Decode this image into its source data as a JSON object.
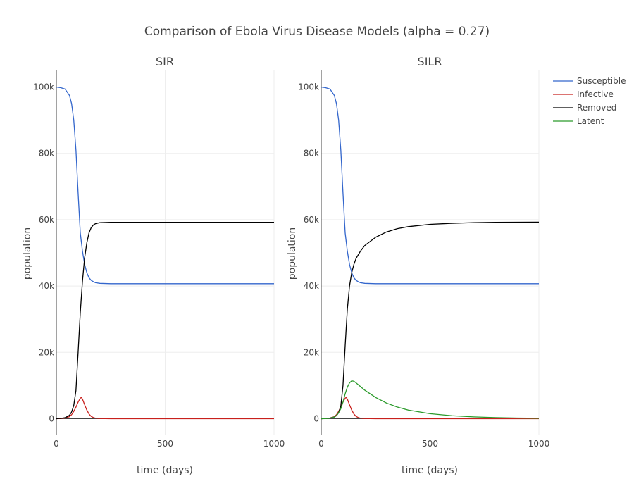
{
  "chart_data": {
    "title": "Comparison of Ebola Virus Disease Models (alpha = 0.27)",
    "type": "line",
    "legend": {
      "placement": "top-right",
      "entries": [
        {
          "name": "Susceptible",
          "color": "#3366cc"
        },
        {
          "name": "Infective",
          "color": "#c8201d"
        },
        {
          "name": "Removed",
          "color": "#000000"
        },
        {
          "name": "Latent",
          "color": "#2a9a2a"
        }
      ]
    },
    "grid": true,
    "subplots": [
      {
        "title": "SIR",
        "xlabel": "time (days)",
        "ylabel": "population",
        "xlim": [
          0,
          1000
        ],
        "ylim": [
          -5000,
          105000
        ],
        "xticks": [
          0,
          500,
          1000
        ],
        "xtick_labels": [
          "0",
          "500",
          "1000"
        ],
        "yticks": [
          0,
          20000,
          40000,
          60000,
          80000,
          100000
        ],
        "ytick_labels": [
          "0",
          "20k",
          "40k",
          "60k",
          "80k",
          "100k"
        ],
        "series": [
          {
            "name": "Susceptible",
            "color": "#3366cc",
            "x": [
              0,
              20,
              40,
              60,
              70,
              80,
              90,
              100,
              110,
              120,
              130,
              140,
              150,
              160,
              170,
              180,
              200,
              250,
              300,
              500,
              1000
            ],
            "y": [
              100000,
              99800,
              99400,
              97500,
              95000,
              90000,
              81000,
              68000,
              56000,
              50500,
              46500,
              44000,
              42500,
              41700,
              41300,
              41000,
              40800,
              40700,
              40700,
              40700,
              40700
            ]
          },
          {
            "name": "Infective",
            "color": "#c8201d",
            "x": [
              0,
              20,
              40,
              60,
              70,
              80,
              90,
              100,
              110,
              115,
              120,
              130,
              140,
              150,
              160,
              170,
              180,
              200,
              250,
              300,
              500,
              1000
            ],
            "y": [
              0,
              50,
              200,
              600,
              1200,
              2200,
              3500,
              5000,
              6200,
              6400,
              5900,
              4200,
              2600,
              1400,
              700,
              350,
              150,
              40,
              0,
              0,
              0,
              0
            ]
          },
          {
            "name": "Removed",
            "color": "#000000",
            "x": [
              0,
              20,
              40,
              60,
              70,
              80,
              90,
              100,
              110,
              120,
              130,
              140,
              150,
              160,
              170,
              180,
              200,
              250,
              300,
              500,
              1000
            ],
            "y": [
              0,
              100,
              300,
              1000,
              2000,
              4000,
              8500,
              20000,
              32000,
              41500,
              48500,
              53000,
              56000,
              57600,
              58400,
              58800,
              59100,
              59200,
              59200,
              59200,
              59200
            ]
          }
        ]
      },
      {
        "title": "SILR",
        "xlabel": "time (days)",
        "ylabel": "population",
        "xlim": [
          0,
          1000
        ],
        "ylim": [
          -5000,
          105000
        ],
        "xticks": [
          0,
          500,
          1000
        ],
        "xtick_labels": [
          "0",
          "500",
          "1000"
        ],
        "yticks": [
          0,
          20000,
          40000,
          60000,
          80000,
          100000
        ],
        "ytick_labels": [
          "0",
          "20k",
          "40k",
          "60k",
          "80k",
          "100k"
        ],
        "series": [
          {
            "name": "Susceptible",
            "color": "#3366cc",
            "x": [
              0,
              20,
              40,
              60,
              70,
              80,
              90,
              100,
              110,
              120,
              130,
              140,
              150,
              160,
              170,
              180,
              200,
              250,
              300,
              500,
              1000
            ],
            "y": [
              100000,
              99800,
              99400,
              97500,
              95000,
              90000,
              81000,
              68000,
              56000,
              50500,
              46500,
              44000,
              42500,
              41700,
              41300,
              41000,
              40800,
              40700,
              40700,
              40700,
              40700
            ]
          },
          {
            "name": "Infective",
            "color": "#c8201d",
            "x": [
              0,
              20,
              40,
              60,
              70,
              80,
              90,
              100,
              110,
              115,
              120,
              130,
              140,
              150,
              160,
              170,
              180,
              200,
              250,
              300,
              500,
              1000
            ],
            "y": [
              0,
              50,
              200,
              600,
              1200,
              2200,
              3500,
              5000,
              6200,
              6400,
              5900,
              4200,
              2600,
              1400,
              700,
              350,
              150,
              40,
              0,
              0,
              0,
              0
            ]
          },
          {
            "name": "Removed",
            "color": "#000000",
            "x": [
              0,
              20,
              40,
              60,
              70,
              80,
              90,
              100,
              110,
              120,
              130,
              140,
              150,
              160,
              180,
              200,
              250,
              300,
              350,
              400,
              500,
              600,
              700,
              800,
              1000
            ],
            "y": [
              0,
              50,
              200,
              500,
              900,
              1800,
              3800,
              10000,
              22000,
              33000,
              40000,
              44000,
              46500,
              48300,
              50500,
              52200,
              54700,
              56300,
              57300,
              57900,
              58600,
              58900,
              59100,
              59200,
              59250
            ]
          },
          {
            "name": "Latent",
            "color": "#2a9a2a",
            "x": [
              0,
              20,
              40,
              60,
              70,
              80,
              90,
              100,
              110,
              120,
              130,
              140,
              150,
              160,
              180,
              200,
              250,
              300,
              350,
              400,
              500,
              600,
              700,
              800,
              900,
              1000
            ],
            "y": [
              0,
              30,
              150,
              500,
              1000,
              1800,
              3000,
              5000,
              7500,
              9500,
              10800,
              11400,
              11300,
              10800,
              9700,
              8600,
              6400,
              4700,
              3500,
              2600,
              1500,
              900,
              550,
              330,
              200,
              130
            ]
          }
        ]
      }
    ]
  }
}
